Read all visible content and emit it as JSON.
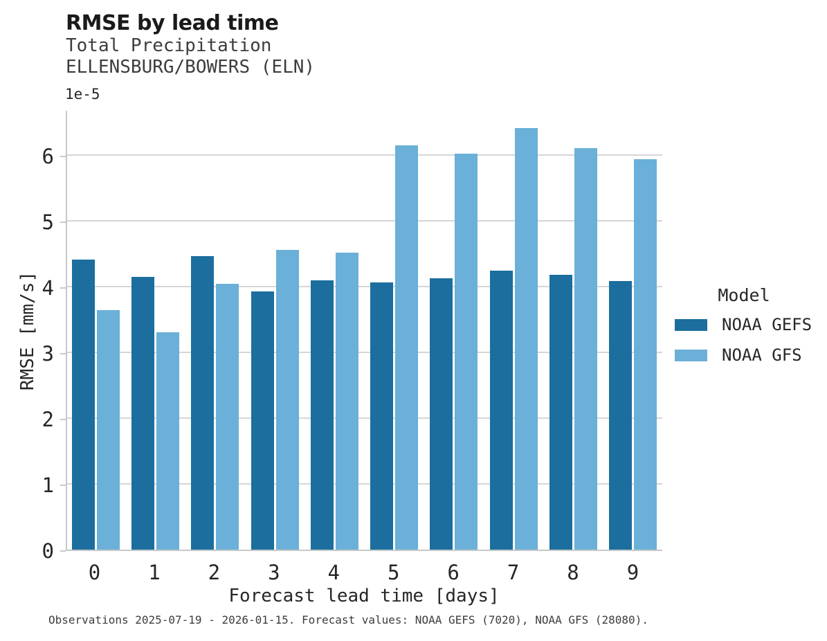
{
  "header": {
    "title": "RMSE by lead time",
    "subtitle_line1": "Total Precipitation",
    "subtitle_line2": "ELLENSBURG/BOWERS (ELN)"
  },
  "axes": {
    "y_offset_label": "1e-5",
    "ylabel": "RMSE [mm/s]",
    "xlabel": "Forecast lead time [days]"
  },
  "legend": {
    "title": "Model",
    "items": [
      {
        "label": "NOAA GEFS",
        "color": "#1b6e9d"
      },
      {
        "label": "NOAA GFS",
        "color": "#6ab0d8"
      }
    ]
  },
  "footer": {
    "text": "Observations 2025-07-19 - 2026-01-15. Forecast values: NOAA GEFS (7020), NOAA GFS (28080)."
  },
  "colors": {
    "gefs_blue": "#1b6e9d",
    "gfs_light_blue": "#6ab0d8",
    "gridline": "#d6d6d6",
    "axis_spine": "#c8c8c8",
    "text_dark": "#262626"
  },
  "chart_data": {
    "type": "bar",
    "title": "RMSE by lead time",
    "subtitle": [
      "Total Precipitation",
      "ELLENSBURG/BOWERS (ELN)"
    ],
    "xlabel": "Forecast lead time [days]",
    "ylabel": "RMSE [mm/s]",
    "y_unit_multiplier": "1e-5",
    "categories": [
      "0",
      "1",
      "2",
      "3",
      "4",
      "5",
      "6",
      "7",
      "8",
      "9"
    ],
    "series": [
      {
        "name": "NOAA GEFS",
        "color": "#1b6e9d",
        "values": [
          4.41,
          4.15,
          4.47,
          3.93,
          4.1,
          4.07,
          4.13,
          4.25,
          4.18,
          4.09
        ]
      },
      {
        "name": "NOAA GFS",
        "color": "#6ab0d8",
        "values": [
          3.64,
          3.31,
          4.05,
          4.56,
          4.52,
          6.15,
          6.03,
          6.42,
          6.11,
          5.94
        ]
      }
    ],
    "values_unit": "1e-5 mm/s",
    "ylim": [
      0,
      6.7
    ],
    "yticks": [
      0,
      1,
      2,
      3,
      4,
      5,
      6
    ],
    "grid": true,
    "legend_title": "Model",
    "legend_position": "right"
  }
}
